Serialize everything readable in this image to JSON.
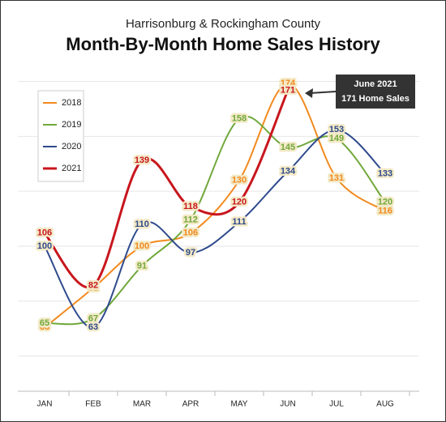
{
  "chart_data": {
    "type": "line",
    "title": "Harrisonburg & Rockingham County",
    "subtitle": "Month-By-Month Home Sales History",
    "categories": [
      "JAN",
      "FEB",
      "MAR",
      "APR",
      "MAY",
      "JUN",
      "JUL",
      "AUG"
    ],
    "series": [
      {
        "name": "2018",
        "color": "#f28a1e",
        "values": [
          63,
          81,
          100,
          106,
          130,
          174,
          131,
          116
        ]
      },
      {
        "name": "2019",
        "color": "#70a83b",
        "values": [
          65,
          67,
          91,
          112,
          158,
          145,
          149,
          120
        ]
      },
      {
        "name": "2020",
        "color": "#2e4a8c",
        "values": [
          100,
          63,
          110,
          97,
          111,
          134,
          153,
          133
        ]
      },
      {
        "name": "2021",
        "color": "#c8161d",
        "values": [
          106,
          82,
          139,
          118,
          120,
          171,
          null,
          null
        ]
      }
    ],
    "ylim": [
      34,
      180
    ],
    "yticks": [
      50,
      75,
      100,
      125,
      150,
      175
    ],
    "grid": true,
    "legend": "upper left",
    "annotation": [
      "June 2021",
      "171 Home Sales"
    ]
  }
}
